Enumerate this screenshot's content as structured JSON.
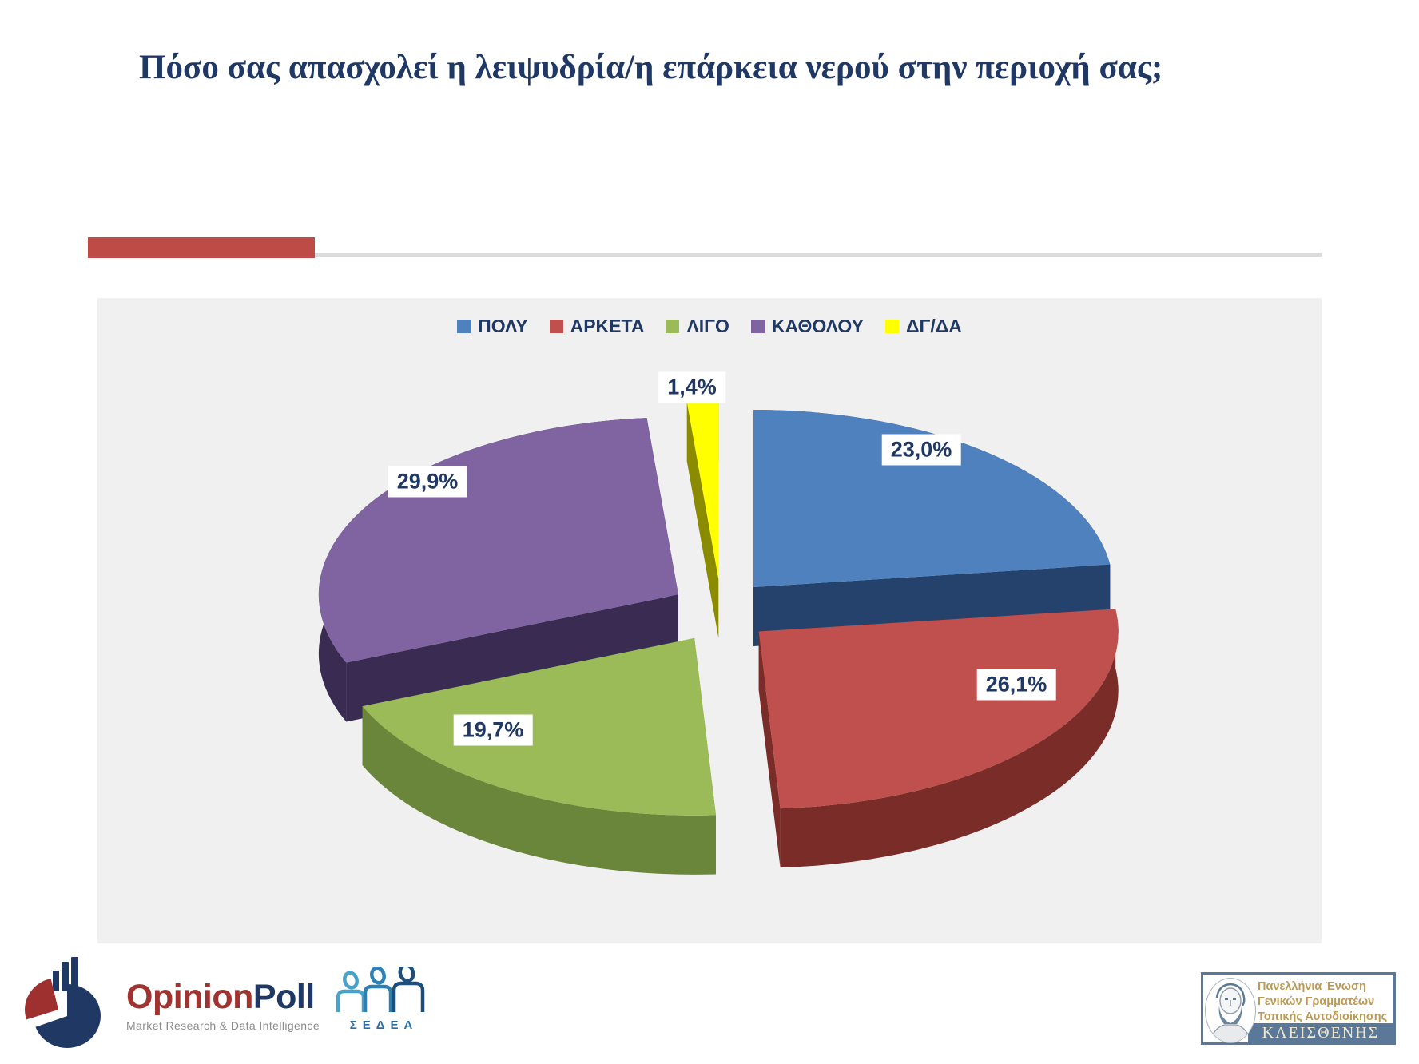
{
  "slide": {
    "title": "Πόσο σας απασχολεί η λειψυδρία/η επάρκεια νερού στην περιοχή σας;"
  },
  "chart_data": {
    "type": "pie",
    "style": "3d-exploded",
    "categories": [
      "ΠΟΛΥ",
      "ΑΡΚΕΤΑ",
      "ΛΙΓΟ",
      "ΚΑΘΟΛΟΥ",
      "ΔΓ/ΔΑ"
    ],
    "values": [
      23.0,
      26.1,
      19.7,
      29.9,
      1.4
    ],
    "labels": [
      "23,0%",
      "26,1%",
      "19,7%",
      "29,9%",
      "1,4%"
    ],
    "colors": [
      "#4E81BD",
      "#C0504D",
      "#9BBB59",
      "#8064A2",
      "#FFFF00"
    ],
    "side_colors": [
      "#24426B",
      "#7A2C29",
      "#69863B",
      "#392B52",
      "#8B8B00"
    ],
    "legend_position": "top-center",
    "label_text_color": "#1F3864",
    "plot_background": "#F0F0F0",
    "start_angle_deg": 0,
    "direction": "clockwise"
  },
  "accent": {
    "bar_color": "#BF4B47",
    "rule_color": "#DCDCDC",
    "title_color": "#1F3864"
  },
  "footer": {
    "opinionpoll": {
      "brand_part1": "Opinion",
      "brand_part2": "Poll",
      "tagline": "Market Research & Data Intelligence"
    },
    "sedea": {
      "name": "ΣΕΔΕΑ"
    },
    "kleisthenis": {
      "org_line1": "Πανελλήνια Ένωση",
      "org_line2": "Γενικών Γραμματέων",
      "org_line3": "Τοπικής Αυτοδιοίκησης",
      "banner": "ΚΛΕΙΣΘΕΝΗΣ"
    }
  }
}
